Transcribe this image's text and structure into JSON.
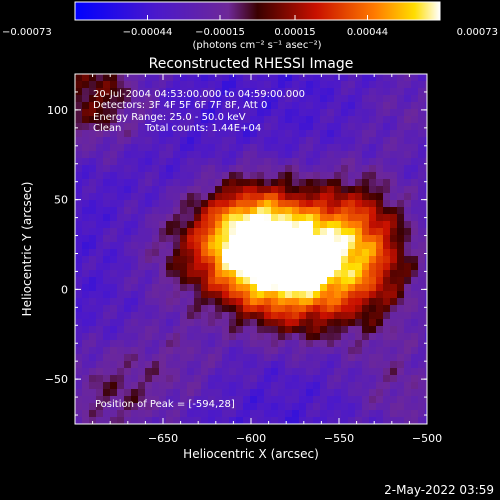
{
  "chart_data": {
    "type": "heatmap",
    "title": "Reconstructed RHESSI Image",
    "xlabel": "Heliocentric X (arcsec)",
    "ylabel": "Heliocentric Y (arcsec)",
    "xlim": [
      -700,
      -500
    ],
    "ylim": [
      -75,
      120
    ],
    "x_ticks": [
      -650,
      -600,
      -550,
      -500
    ],
    "x_tick_labels": [
      "−650",
      "−600",
      "−550",
      "−500"
    ],
    "y_ticks": [
      -50,
      0,
      50,
      100
    ],
    "y_tick_labels": [
      "−50",
      "0",
      "50",
      "100"
    ],
    "colorbar": {
      "range": [
        -0.00073,
        0.00073
      ],
      "ticks": [
        -0.00073,
        -0.00044,
        -0.00015,
        0.00015,
        0.00044,
        0.00073
      ],
      "tick_labels": [
        "−0.00073",
        "−0.00044",
        "−0.00015",
        "0.00015",
        "0.00044",
        "0.00073"
      ],
      "unit_label": "(photons cm⁻² s⁻¹ asec⁻²)"
    },
    "annotations": {
      "time_range": "20-Jul-2004 04:53:00.000 to 04:59:00.000",
      "detectors": "Detectors: 3F 4F 5F 6F 7F 8F, Att 0",
      "energy": "Energy Range: 25.0 - 50.0 keV",
      "method": "Clean",
      "counts": "Total counts: 1.44E+04",
      "peak": "Position of Peak = [-594,28]"
    },
    "peak": {
      "x": -594,
      "y": 28
    },
    "sources": [
      {
        "x": -600,
        "y": 28,
        "amp": 0.0007
      },
      {
        "x": -585,
        "y": 12,
        "amp": 0.00034
      },
      {
        "x": -553,
        "y": 20,
        "amp": 0.0003
      },
      {
        "x": -540,
        "y": 38,
        "amp": 0.00026
      },
      {
        "x": -530,
        "y": 5,
        "amp": 0.00022
      },
      {
        "x": -570,
        "y": -5,
        "amp": 0.00018
      },
      {
        "x": -690,
        "y": 108,
        "amp": 0.0003
      },
      {
        "x": -640,
        "y": 20,
        "amp": 0.00016
      },
      {
        "x": -680,
        "y": -60,
        "amp": 0.0002
      },
      {
        "x": -515,
        "y": -55,
        "amp": 0.00016
      },
      {
        "x": -640,
        "y": -40,
        "amp": 0.00012
      },
      {
        "x": -510,
        "y": 100,
        "amp": 0.00012
      }
    ]
  },
  "footer": {
    "timestamp": "2-May-2022 03:59"
  },
  "colors": {
    "background": "#000000",
    "text": "#ffffff"
  }
}
